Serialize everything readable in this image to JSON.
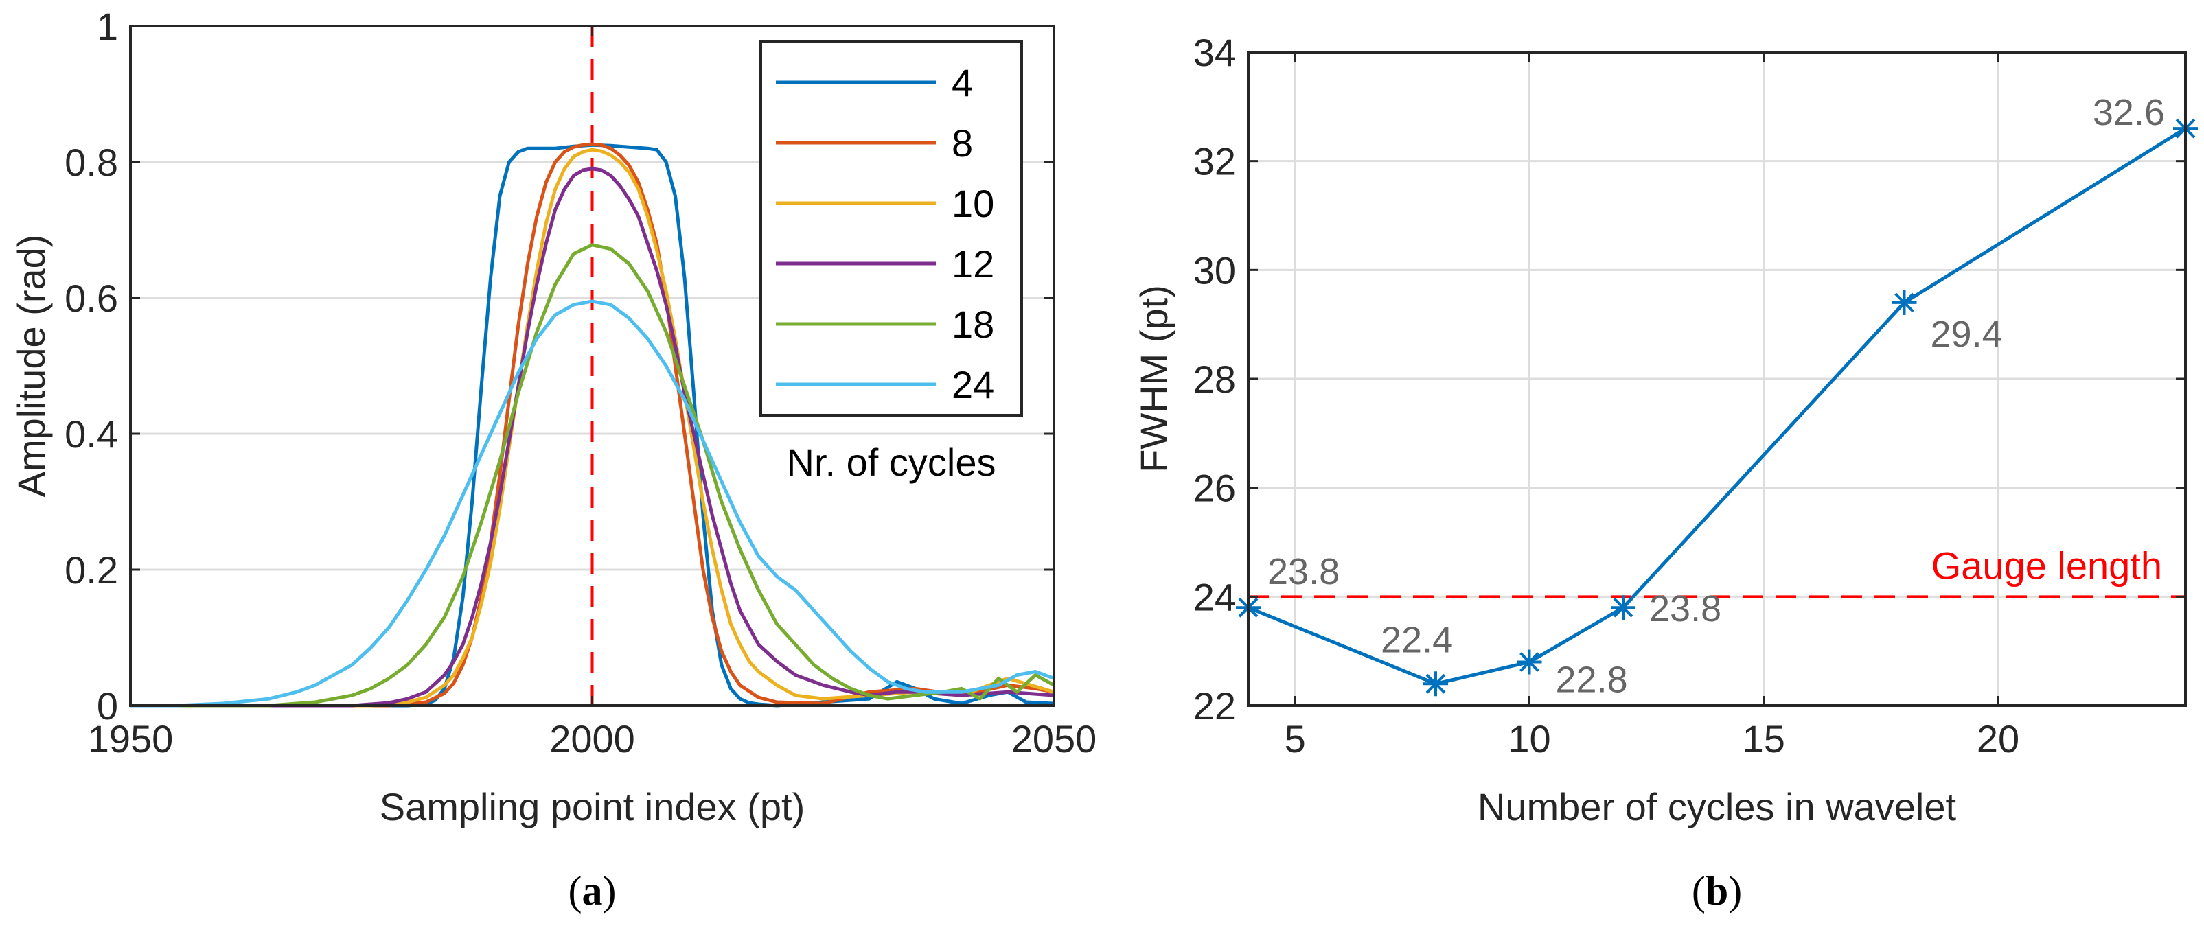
{
  "colors": {
    "series": [
      "#0072bd",
      "#d95319",
      "#edb120",
      "#7e2f8e",
      "#77ac30",
      "#4dbeee"
    ],
    "reference": "#ff0000",
    "point_label": "#666666",
    "grid": "#dddddd",
    "axes": "#262626"
  },
  "chart_data": [
    {
      "type": "line",
      "caption": "(a)",
      "caption_bold": "a",
      "xlabel": "Sampling point index (pt)",
      "ylabel": "Amplitude (rad)",
      "xlim": [
        1950,
        2050
      ],
      "ylim": [
        0,
        1
      ],
      "xticks": [
        1950,
        2000,
        2050
      ],
      "yticks": [
        0,
        0.2,
        0.4,
        0.6,
        0.8,
        1
      ],
      "xtick_labels": [
        "1950",
        "2000",
        "2050"
      ],
      "ytick_labels": [
        "0",
        "0.2",
        "0.4",
        "0.6",
        "0.8",
        "1"
      ],
      "grid": "horizontal",
      "reference_line": {
        "orientation": "vertical",
        "x": 2000,
        "style": "dashed"
      },
      "legend": {
        "placement": "top-right",
        "title": "Nr. of cycles",
        "entries": [
          "4",
          "8",
          "10",
          "12",
          "18",
          "24"
        ]
      },
      "series": [
        {
          "name": "4",
          "x": [
            1950,
            1975,
            1980,
            1982,
            1983,
            1984,
            1985,
            1986,
            1987,
            1988,
            1989,
            1990,
            1991,
            1992,
            1993,
            1994,
            1996,
            1998,
            2000,
            2002,
            2004,
            2006,
            2007,
            2008,
            2009,
            2010,
            2011,
            2012,
            2013,
            2014,
            2015,
            2016,
            2017,
            2018,
            2020,
            2025,
            2030,
            2033,
            2035,
            2037,
            2040,
            2043,
            2045,
            2047,
            2050
          ],
          "values": [
            0,
            0,
            0,
            0.002,
            0.008,
            0.025,
            0.07,
            0.16,
            0.3,
            0.47,
            0.63,
            0.75,
            0.8,
            0.815,
            0.82,
            0.82,
            0.82,
            0.823,
            0.825,
            0.824,
            0.822,
            0.82,
            0.818,
            0.8,
            0.75,
            0.63,
            0.46,
            0.28,
            0.14,
            0.06,
            0.025,
            0.01,
            0.004,
            0.002,
            0,
            0.005,
            0.01,
            0.035,
            0.025,
            0.01,
            0.003,
            0.015,
            0.02,
            0.005,
            0.003
          ]
        },
        {
          "name": "8",
          "x": [
            1950,
            1978,
            1982,
            1984,
            1985,
            1986,
            1987,
            1988,
            1989,
            1990,
            1991,
            1992,
            1993,
            1994,
            1995,
            1996,
            1997,
            1998,
            1999,
            2000,
            2001,
            2002,
            2003,
            2004,
            2005,
            2006,
            2007,
            2008,
            2009,
            2010,
            2011,
            2012,
            2013,
            2014,
            2015,
            2016,
            2018,
            2020,
            2025,
            2030,
            2035,
            2040,
            2045,
            2048,
            2050
          ],
          "values": [
            0,
            0,
            0.005,
            0.018,
            0.033,
            0.06,
            0.1,
            0.16,
            0.24,
            0.34,
            0.45,
            0.56,
            0.65,
            0.72,
            0.77,
            0.8,
            0.815,
            0.822,
            0.825,
            0.826,
            0.825,
            0.82,
            0.81,
            0.795,
            0.77,
            0.73,
            0.68,
            0.6,
            0.5,
            0.4,
            0.3,
            0.2,
            0.13,
            0.08,
            0.05,
            0.03,
            0.012,
            0.005,
            0.003,
            0.02,
            0.025,
            0.015,
            0.03,
            0.025,
            0.02
          ]
        },
        {
          "name": "10",
          "x": [
            1950,
            1976,
            1980,
            1982,
            1984,
            1985,
            1986,
            1987,
            1988,
            1989,
            1990,
            1991,
            1992,
            1993,
            1994,
            1995,
            1996,
            1997,
            1998,
            1999,
            2000,
            2001,
            2002,
            2003,
            2004,
            2005,
            2006,
            2007,
            2008,
            2009,
            2010,
            2011,
            2012,
            2013,
            2014,
            2015,
            2016,
            2017,
            2018,
            2020,
            2022,
            2025,
            2030,
            2035,
            2040,
            2045,
            2050
          ],
          "values": [
            0,
            0,
            0.005,
            0.012,
            0.03,
            0.045,
            0.07,
            0.1,
            0.15,
            0.21,
            0.29,
            0.38,
            0.47,
            0.56,
            0.64,
            0.71,
            0.76,
            0.79,
            0.808,
            0.815,
            0.818,
            0.816,
            0.81,
            0.8,
            0.785,
            0.76,
            0.72,
            0.67,
            0.61,
            0.54,
            0.46,
            0.38,
            0.3,
            0.23,
            0.17,
            0.12,
            0.09,
            0.065,
            0.05,
            0.03,
            0.015,
            0.01,
            0.015,
            0.02,
            0.015,
            0.04,
            0.02
          ]
        },
        {
          "name": "12",
          "x": [
            1950,
            1974,
            1978,
            1980,
            1982,
            1984,
            1985,
            1986,
            1987,
            1988,
            1989,
            1990,
            1991,
            1992,
            1993,
            1994,
            1995,
            1996,
            1997,
            1998,
            1999,
            2000,
            2001,
            2002,
            2003,
            2004,
            2005,
            2006,
            2007,
            2008,
            2009,
            2010,
            2011,
            2012,
            2013,
            2014,
            2015,
            2016,
            2018,
            2020,
            2022,
            2025,
            2028,
            2030,
            2033,
            2035,
            2040,
            2045,
            2050
          ],
          "values": [
            0,
            0,
            0.004,
            0.01,
            0.02,
            0.045,
            0.065,
            0.09,
            0.13,
            0.18,
            0.24,
            0.31,
            0.39,
            0.47,
            0.55,
            0.62,
            0.68,
            0.73,
            0.76,
            0.78,
            0.788,
            0.79,
            0.788,
            0.78,
            0.765,
            0.745,
            0.72,
            0.68,
            0.64,
            0.59,
            0.53,
            0.46,
            0.4,
            0.34,
            0.28,
            0.23,
            0.18,
            0.14,
            0.09,
            0.065,
            0.045,
            0.03,
            0.02,
            0.015,
            0.02,
            0.02,
            0.015,
            0.02,
            0.015
          ]
        },
        {
          "name": "18",
          "x": [
            1950,
            1965,
            1970,
            1974,
            1976,
            1978,
            1980,
            1982,
            1984,
            1986,
            1988,
            1990,
            1992,
            1994,
            1996,
            1998,
            2000,
            2002,
            2004,
            2006,
            2008,
            2010,
            2012,
            2014,
            2016,
            2018,
            2020,
            2022,
            2024,
            2026,
            2028,
            2030,
            2032,
            2035,
            2038,
            2040,
            2042,
            2044,
            2046,
            2048,
            2050
          ],
          "values": [
            0,
            0,
            0.005,
            0.015,
            0.025,
            0.04,
            0.06,
            0.09,
            0.13,
            0.19,
            0.27,
            0.36,
            0.46,
            0.55,
            0.62,
            0.665,
            0.678,
            0.672,
            0.65,
            0.61,
            0.55,
            0.47,
            0.39,
            0.3,
            0.23,
            0.17,
            0.12,
            0.09,
            0.06,
            0.04,
            0.025,
            0.015,
            0.01,
            0.015,
            0.02,
            0.025,
            0.01,
            0.04,
            0.02,
            0.045,
            0.03
          ]
        },
        {
          "name": "24",
          "x": [
            1950,
            1955,
            1960,
            1965,
            1968,
            1970,
            1972,
            1974,
            1976,
            1978,
            1980,
            1982,
            1984,
            1986,
            1988,
            1990,
            1992,
            1994,
            1996,
            1998,
            2000,
            2002,
            2004,
            2006,
            2008,
            2010,
            2012,
            2014,
            2016,
            2018,
            2020,
            2022,
            2024,
            2026,
            2028,
            2030,
            2032,
            2034,
            2036,
            2038,
            2040,
            2042,
            2044,
            2046,
            2048,
            2050
          ],
          "values": [
            0,
            0,
            0.003,
            0.01,
            0.02,
            0.03,
            0.045,
            0.06,
            0.085,
            0.115,
            0.155,
            0.2,
            0.25,
            0.31,
            0.37,
            0.43,
            0.49,
            0.54,
            0.575,
            0.59,
            0.595,
            0.59,
            0.57,
            0.54,
            0.5,
            0.45,
            0.39,
            0.33,
            0.27,
            0.22,
            0.19,
            0.17,
            0.14,
            0.11,
            0.08,
            0.055,
            0.035,
            0.025,
            0.02,
            0.02,
            0.02,
            0.025,
            0.03,
            0.045,
            0.05,
            0.04
          ]
        }
      ]
    },
    {
      "type": "line",
      "caption": "(b)",
      "caption_bold": "b",
      "xlabel": "Number of cycles in wavelet",
      "ylabel": "FWHM (pt)",
      "xlim": [
        4,
        24
      ],
      "ylim": [
        22,
        34
      ],
      "xticks": [
        5,
        10,
        15,
        20
      ],
      "yticks": [
        22,
        24,
        26,
        28,
        30,
        32,
        34
      ],
      "xtick_labels": [
        "5",
        "10",
        "15",
        "20"
      ],
      "ytick_labels": [
        "22",
        "24",
        "26",
        "28",
        "30",
        "32",
        "34"
      ],
      "grid": "both",
      "reference_line": {
        "orientation": "horizontal",
        "y": 24,
        "style": "dashed",
        "label": "Gauge length"
      },
      "marker": "asterisk",
      "series": [
        {
          "x": [
            4,
            8,
            10,
            12,
            18,
            24
          ],
          "values": [
            23.8,
            22.4,
            22.8,
            23.8,
            29.4,
            32.6
          ],
          "point_labels": [
            "23.8",
            "22.4",
            "22.8",
            "23.8",
            "29.4",
            "32.6"
          ]
        }
      ]
    }
  ]
}
